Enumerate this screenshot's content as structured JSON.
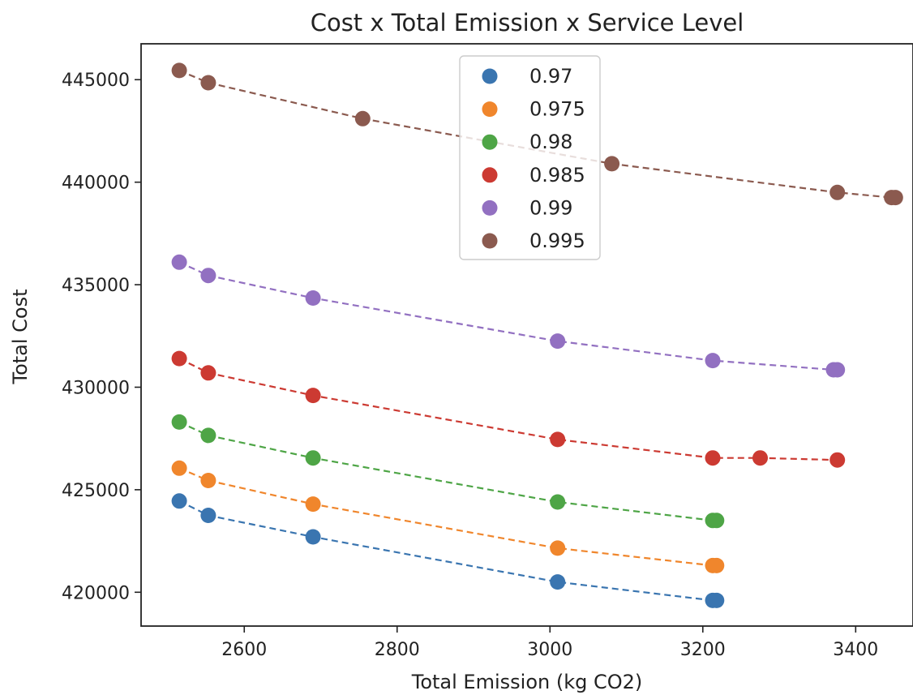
{
  "chart_data": {
    "type": "scatter",
    "title": "Cost x Total Emission x Service Level",
    "xlabel": "Total Emission (kg CO2)",
    "ylabel": "Total Cost",
    "xlim": [
      2465,
      3475
    ],
    "ylim": [
      418350,
      446750
    ],
    "x_ticks": [
      2600,
      2800,
      3000,
      3200,
      3400
    ],
    "y_ticks": [
      420000,
      425000,
      430000,
      435000,
      440000,
      445000
    ],
    "grid": false,
    "legend_position": "top-center",
    "series": [
      {
        "name": "0.97",
        "color": "#3a75b0",
        "x": [
          2515,
          2553,
          2690,
          3010,
          3213,
          3218
        ],
        "y": [
          424450,
          423750,
          422700,
          420500,
          419600,
          419600
        ]
      },
      {
        "name": "0.975",
        "color": "#f0862c",
        "x": [
          2515,
          2553,
          2690,
          3010,
          3213,
          3218
        ],
        "y": [
          426050,
          425450,
          424300,
          422150,
          421300,
          421300
        ]
      },
      {
        "name": "0.98",
        "color": "#4ea546",
        "x": [
          2515,
          2553,
          2690,
          3010,
          3213,
          3218
        ],
        "y": [
          428300,
          427650,
          426550,
          424400,
          423500,
          423500
        ]
      },
      {
        "name": "0.985",
        "color": "#cc3a32",
        "x": [
          2515,
          2553,
          2690,
          3010,
          3213,
          3275,
          3376
        ],
        "y": [
          431400,
          430700,
          429600,
          427450,
          426550,
          426550,
          426450
        ]
      },
      {
        "name": "0.99",
        "color": "#9270c1",
        "x": [
          2515,
          2553,
          2690,
          3010,
          3213,
          3371,
          3376
        ],
        "y": [
          436100,
          435450,
          434350,
          432250,
          431300,
          430850,
          430850
        ]
      },
      {
        "name": "0.995",
        "color": "#8b5a4f",
        "x": [
          2515,
          2553,
          2755,
          3081,
          3376,
          3447,
          3452
        ],
        "y": [
          445450,
          444850,
          443100,
          440900,
          439500,
          439250,
          439250
        ]
      }
    ]
  }
}
